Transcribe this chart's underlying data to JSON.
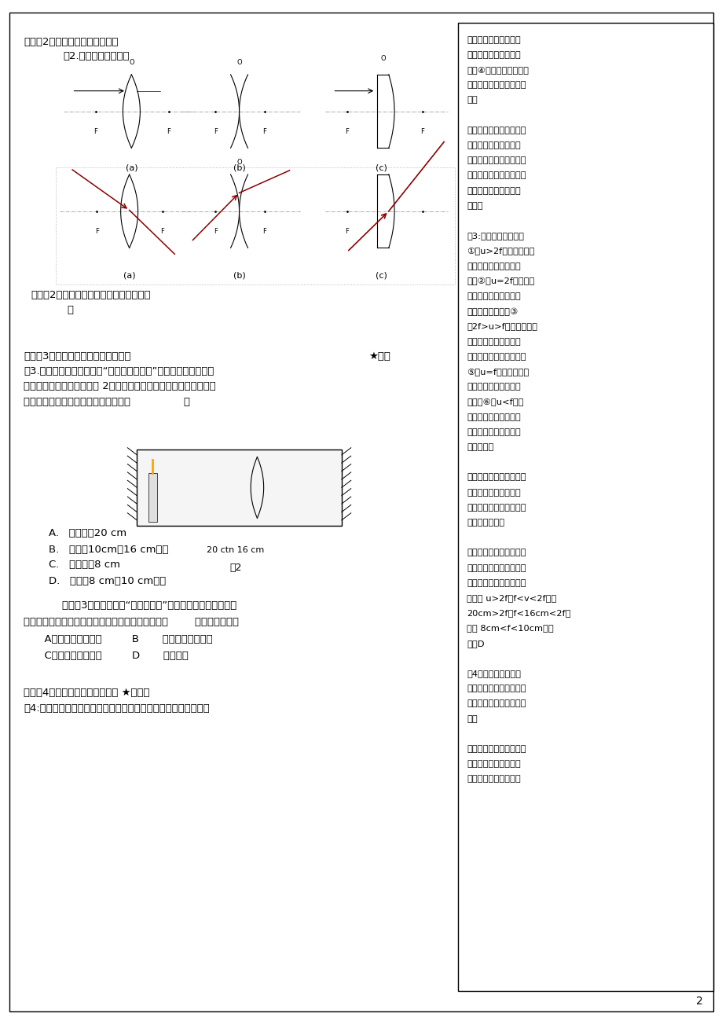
{
  "page_bg": "#ffffff",
  "border_color": "#000000",
  "text_color": "#000000",
  "page_width": 9.2,
  "page_height": 13.03,
  "right_box_text": [
    "的入射光，经透镜折射",
    "后，折射光线平行于主",
    "轴。④过光心的入射光线",
    "通过透镜后，传播方向不",
    "变。",
    "",
    "解题规律：做这三条特殊",
    "光线时要注意到凹透镜",
    "的虚焦点，凸透镜是折射",
    "光线过焦点，凹透镜是折",
    "射光线的反向延长线过",
    "焦点。",
    "",
    "例3:凸透镜成像规律：",
    "①当u>2f时，成倒立、",
    "缩小的实像，应用为照",
    "相机②当u=2f时，成倒",
    "立、等大的实像，可用",
    "来测量凸透镜焦距③",
    "当2f>u>f时，成倒立、",
    "放大的实像。应用为放",
    "映机、幻灯机，投影机。",
    "⑤当u=f时，不成像。",
    "应用为制作平行光源：",
    "探照灯⑥当u<f时，",
    "成正立、放大的虚像，",
    "虚像在物体同侧，应用",
    "为放大镜。",
    "",
    "解题规律：此题要求同学",
    "们知道凸透镜所成像的",
    "虚实、倒正、大小与发光",
    "体位置的关系。",
    "",
    "分析：由图可知物距大于",
    "像距，根据凸透镜成像规",
    "律，此时成倒立缩小的实",
    "像，且 u>2f，f<v<2f；即",
    "20cm>2f，f<16cm<2f。",
    "可得 8cm<f<10cm。答",
    "案：D",
    "",
    "例4：凸透镜的成像规",
    "律：一倍焦距分虚实，二",
    "倍焦距分大小，物近像远",
    "大。",
    "",
    "解题规律：可以根据凸透",
    "镜成像性质的变化规律",
    "对投影仪进行调整和正"
  ]
}
